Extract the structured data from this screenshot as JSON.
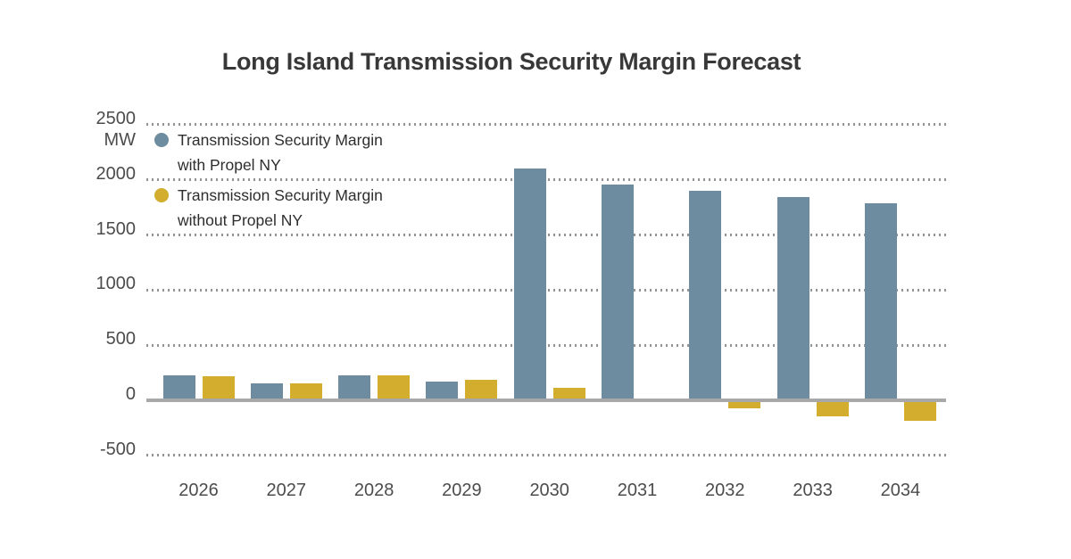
{
  "page": {
    "background_color": "#ffffff"
  },
  "chart_data": {
    "type": "bar",
    "title": "Long Island Transmission Security Margin Forecast",
    "unit_label": "MW",
    "xlabel": "",
    "ylabel": "MW",
    "categories": [
      "2026",
      "2027",
      "2028",
      "2029",
      "2030",
      "2031",
      "2032",
      "2033",
      "2034"
    ],
    "series": [
      {
        "name": "Transmission Security Margin with Propel NY",
        "legend_lines": [
          "Transmission Security Margin",
          "with Propel NY"
        ],
        "color": "#6d8ca0",
        "values": [
          225,
          150,
          230,
          170,
          2100,
          1960,
          1900,
          1845,
          1790
        ]
      },
      {
        "name": "Transmission Security Margin without Propel NY",
        "legend_lines": [
          "Transmission Security Margin",
          "without Propel NY"
        ],
        "color": "#d3ad2e",
        "values": [
          220,
          150,
          225,
          185,
          115,
          0,
          -70,
          -145,
          -190
        ]
      }
    ],
    "y_axis": {
      "ticks": [
        2500,
        2000,
        1500,
        1000,
        500,
        0,
        -500
      ],
      "tick_labels": [
        "2500",
        "2000",
        "1500",
        "1000",
        "500",
        "0",
        "-500"
      ],
      "ylim": [
        -500,
        2500
      ],
      "gridlines": "dotted horizontal, solid line at zero",
      "gridline_color": "#949494",
      "zero_line_color": "#a8a8a8"
    },
    "legend_position": "top-left inside plot area",
    "text_colors": {
      "title": "#383838",
      "axis_labels": "#4c4c4c",
      "legend": "#2e2e2e"
    }
  }
}
